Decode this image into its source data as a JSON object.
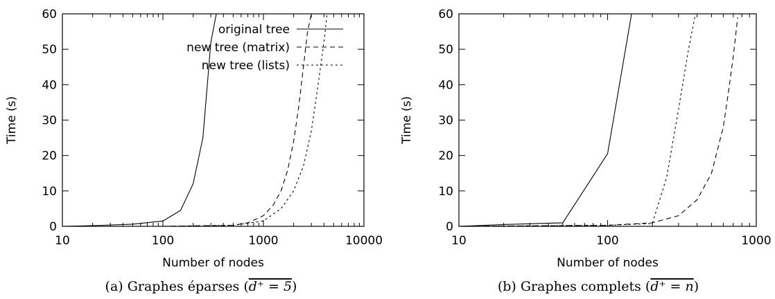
{
  "chart_data": [
    {
      "type": "line",
      "caption": "(a) Graphes éparses (",
      "caption_math": "d⁺ = 5",
      "caption_end": ")",
      "xlabel": "Number of nodes",
      "ylabel": "Time (s)",
      "xscale": "log",
      "xlim": [
        10,
        10000
      ],
      "ylim": [
        0,
        60
      ],
      "xticks": [
        10,
        100,
        1000,
        10000
      ],
      "xtick_labels": [
        "10",
        "100",
        "1000",
        "10000"
      ],
      "yticks": [
        0,
        10,
        20,
        30,
        40,
        50,
        60
      ],
      "ytick_labels": [
        "0",
        "10",
        "20",
        "30",
        "40",
        "50",
        "60"
      ],
      "legend_position": "top-right",
      "series": [
        {
          "name": "original tree",
          "dash": "solid",
          "x": [
            10,
            20,
            50,
            100,
            150,
            200,
            250,
            300,
            340
          ],
          "y": [
            0,
            0.2,
            0.6,
            1.5,
            4.5,
            12,
            25,
            52,
            60
          ]
        },
        {
          "name": "new tree (matrix)",
          "dash": "dashed",
          "x": [
            10,
            100,
            500,
            700,
            1000,
            1250,
            1500,
            1750,
            2000,
            2250,
            2500,
            2750,
            3000
          ],
          "y": [
            0,
            0,
            0.3,
            1,
            3,
            6,
            10,
            16,
            24,
            34,
            45,
            55,
            60
          ]
        },
        {
          "name": "new tree (lists)",
          "dash": "dotted",
          "x": [
            10,
            100,
            500,
            1000,
            1500,
            2000,
            2500,
            3000,
            3500,
            4000,
            4300
          ],
          "y": [
            0,
            0,
            0.3,
            1.5,
            5,
            10,
            17,
            27,
            40,
            52,
            60
          ]
        }
      ]
    },
    {
      "type": "line",
      "caption": "(b) Graphes complets (",
      "caption_math": "d⁺ = n",
      "caption_end": ")",
      "xlabel": "Number of nodes",
      "ylabel": "Time (s)",
      "xscale": "log",
      "xlim": [
        10,
        1000
      ],
      "ylim": [
        0,
        60
      ],
      "xticks": [
        10,
        100,
        1000
      ],
      "xtick_labels": [
        "10",
        "100",
        "1000"
      ],
      "yticks": [
        0,
        10,
        20,
        30,
        40,
        50,
        60
      ],
      "ytick_labels": [
        "0",
        "10",
        "20",
        "30",
        "40",
        "50",
        "60"
      ],
      "series": [
        {
          "name": "original tree",
          "dash": "solid",
          "x": [
            10,
            20,
            50,
            100,
            145
          ],
          "y": [
            0,
            0.5,
            1,
            20.5,
            60
          ]
        },
        {
          "name": "new tree (matrix)",
          "dash": "dashed",
          "x": [
            10,
            100,
            200,
            300,
            400,
            500,
            600,
            650,
            700,
            750
          ],
          "y": [
            0,
            0.3,
            1,
            3,
            7.5,
            15,
            28,
            38,
            48,
            59
          ]
        },
        {
          "name": "new tree (lists)",
          "dash": "dotted",
          "x": [
            10,
            100,
            200,
            250,
            300,
            350,
            390
          ],
          "y": [
            0,
            0.3,
            0.8,
            14,
            33,
            50,
            60
          ]
        }
      ]
    }
  ]
}
